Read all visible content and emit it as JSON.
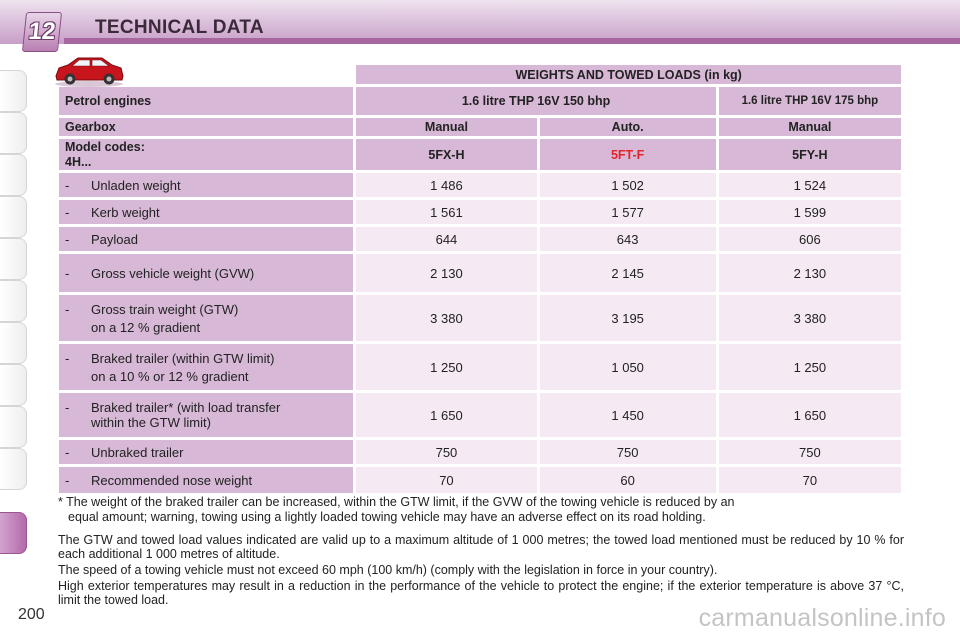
{
  "header": {
    "chapter_number": "12",
    "title": "TECHNICAL DATA"
  },
  "table": {
    "title": "WEIGHTS AND TOWED LOADS (in kg)",
    "engines": {
      "label": "Petrol engines",
      "col1": "1.6 litre THP 16V 150 bhp",
      "col2": "1.6 litre THP 16V 175 bhp"
    },
    "gearbox": {
      "label": "Gearbox",
      "values": [
        "Manual",
        "Auto.",
        "Manual"
      ]
    },
    "model_codes": {
      "label_line1": "Model codes:",
      "label_line2": "4H...",
      "values": [
        "5FX-H",
        "5FT-F",
        "5FY-H"
      ],
      "highlight_color": "#e3262b"
    },
    "rows": [
      {
        "dash": "-",
        "line1": "Unladen weight",
        "line2": "",
        "values": [
          "1 486",
          "1 502",
          "1 524"
        ]
      },
      {
        "dash": "-",
        "line1": "Kerb weight",
        "line2": "",
        "values": [
          "1 561",
          "1 577",
          "1 599"
        ]
      },
      {
        "dash": "-",
        "line1": "Payload",
        "line2": "",
        "values": [
          "644",
          "643",
          "606"
        ]
      },
      {
        "dash": "-",
        "line1": "Gross vehicle weight (GVW)",
        "line2": "",
        "values": [
          "2 130",
          "2 145",
          "2 130"
        ]
      },
      {
        "dash": "-",
        "line1": "Gross train weight (GTW)",
        "line2": "on a 12 % gradient",
        "values": [
          "3 380",
          "3 195",
          "3 380"
        ]
      },
      {
        "dash": "-",
        "line1": "Braked trailer (within GTW limit)",
        "line2": "on a 10 % or 12 % gradient",
        "values": [
          "1 250",
          "1 050",
          "1 250"
        ]
      },
      {
        "dash": "-",
        "line1": "Braked trailer* (with load transfer",
        "line2": "within the GTW limit)",
        "values": [
          "1 650",
          "1 450",
          "1 650"
        ]
      },
      {
        "dash": "-",
        "line1": "Unbraked trailer",
        "line2": "",
        "values": [
          "750",
          "750",
          "750"
        ]
      },
      {
        "dash": "-",
        "line1": "Recommended nose weight",
        "line2": "",
        "values": [
          "70",
          "60",
          "70"
        ]
      }
    ]
  },
  "footnote": {
    "star": "*",
    "line1": "The weight of the braked trailer can be increased, within the GTW limit, if the GVW of the towing vehicle is reduced by an",
    "line2": "equal amount; warning, towing using a lightly loaded towing vehicle may have an adverse effect on its road holding."
  },
  "paragraphs": [
    "The GTW and towed load values indicated are valid up to a maximum altitude of 1 000 metres; the towed load mentioned must be reduced by 10 % for each additional 1 000 metres of altitude.",
    "The speed of a towing vehicle must not exceed 60 mph (100 km/h) (comply with the legislation in force in your country).",
    "High exterior temperatures may result in a reduction in the performance of the vehicle to protect the engine; if the exterior temperature is above 37 °C, limit the towed load."
  ],
  "page_number": "200",
  "watermark": "carmanualsonline.info",
  "colors": {
    "accent": "#a8669f",
    "header_cell": "#d7b8d6",
    "value_cell": "#f5eaf3"
  },
  "icons": {
    "vehicle": "car-icon"
  }
}
